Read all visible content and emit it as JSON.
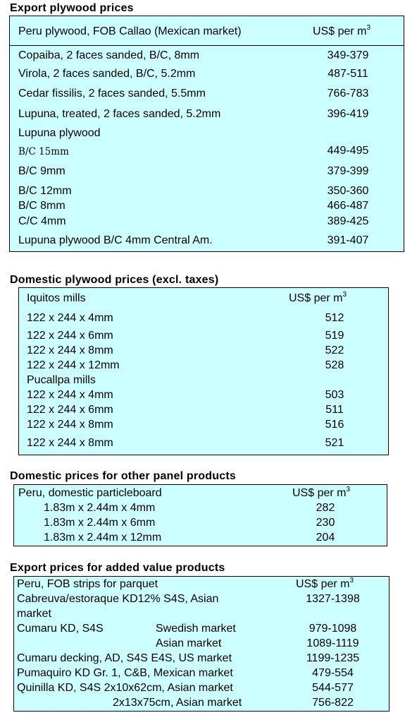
{
  "section1": {
    "title": "Export plywood prices",
    "header_label": "Peru plywood, FOB Callao (Mexican market)",
    "header_price": "US$ per m",
    "header_sup": "3",
    "rows": [
      {
        "label": "Copaiba, 2 faces sanded, B/C, 8mm",
        "price": "349-379"
      },
      {
        "label": "Virola, 2 faces sanded, B/C, 5.2mm",
        "price": "487-511"
      },
      {
        "label": "Cedar fissilis, 2 faces sanded, 5.5mm",
        "price": "766-783"
      },
      {
        "label": "Lupuna, treated, 2 faces sanded, 5.2mm",
        "price": "396-419"
      },
      {
        "label": "Lupuna plywood",
        "price": ""
      },
      {
        "label": "B/C 15mm",
        "price": "449-495"
      },
      {
        "label": "B/C 9mm",
        "price": "379-399"
      },
      {
        "label": "B/C 12mm",
        "price": "350-360"
      },
      {
        "label": "B/C 8mm",
        "price": "466-487"
      },
      {
        "label": "C/C 4mm",
        "price": "389-425"
      },
      {
        "label": "Lupuna plywood B/C 4mm Central Am.",
        "price": "391-407"
      }
    ]
  },
  "section2": {
    "title": "Domestic plywood prices (excl. taxes)",
    "header_label": "Iquitos mills",
    "header_price": "US$ per m",
    "header_sup": "3",
    "rows": [
      {
        "label": "122 x 244 x 4mm",
        "price": "512"
      },
      {
        "label": "122 x 244 x 6mm",
        "price": "519"
      },
      {
        "label": "122 x 244 x 8mm",
        "price": "522"
      },
      {
        "label": "122 x 244 x 12mm",
        "price": "528"
      },
      {
        "label": "Pucallpa mills",
        "price": ""
      },
      {
        "label": "122 x 244 x 4mm",
        "price": "503"
      },
      {
        "label": "122 x 244 x 6mm",
        "price": "511"
      },
      {
        "label": "122 x 244 x 8mm",
        "price": "516"
      },
      {
        "label": "122 x 244 x 8mm",
        "price": "521"
      }
    ]
  },
  "section3": {
    "title": "Domestic prices for other panel products",
    "header_label": "Peru, domestic particleboard",
    "header_price": "US$ per m",
    "header_sup": "3",
    "rows": [
      {
        "label": "1.83m x 2.44m x 4mm",
        "price": "282"
      },
      {
        "label": "1.83m x 2.44m x 6mm",
        "price": "230"
      },
      {
        "label": "1.83m x 2.44m x 12mm",
        "price": "204"
      }
    ]
  },
  "section4": {
    "title": "Export prices for added value products",
    "header_label": "Peru, FOB strips for parquet",
    "header_price": "US$ per m",
    "header_sup": "3",
    "rows": [
      {
        "label": "Cabreuva/estoraque KD12% S4S, Asian",
        "market": "",
        "price": "1327-1398"
      },
      {
        "label": "market",
        "market": "",
        "price": ""
      },
      {
        "label": "Cumaru KD, S4S",
        "market": "Swedish market",
        "price": "979-1098"
      },
      {
        "label": "",
        "market": "Asian market",
        "price": "1089-1119"
      },
      {
        "label": "Cumaru decking, AD, S4S E4S,  US market",
        "market": "",
        "price": "1199-1235"
      },
      {
        "label": "Pumaquiro KD Gr. 1, C&B,  Mexican market",
        "market": "",
        "price": "479-554"
      },
      {
        "label": "Quinilla KD, S4S 2x10x62cm,  Asian market",
        "market": "",
        "price": "544-577"
      },
      {
        "label": "2x13x75cm, Asian market",
        "market": "",
        "price": "756-822"
      }
    ]
  }
}
